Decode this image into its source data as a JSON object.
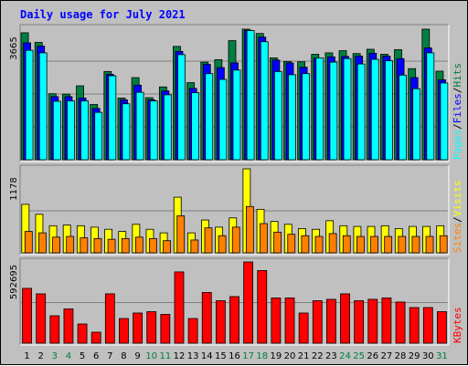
{
  "chart_data": {
    "type": "bar",
    "title": "Daily usage for July 2021",
    "days": [
      "1",
      "2",
      "3",
      "4",
      "5",
      "6",
      "7",
      "8",
      "9",
      "10",
      "11",
      "12",
      "13",
      "14",
      "15",
      "16",
      "17",
      "18",
      "19",
      "20",
      "21",
      "22",
      "23",
      "24",
      "25",
      "26",
      "27",
      "28",
      "29",
      "30",
      "31"
    ],
    "weekend_days": [
      "3",
      "4",
      "10",
      "11",
      "17",
      "18",
      "24",
      "25",
      "31"
    ],
    "colors": {
      "title": "#0000ff",
      "day_label": "#000000",
      "weekend_label": "#008040",
      "hits": "#008040",
      "files": "#0000ff",
      "pages": "#00ffff",
      "visits": "#ffff00",
      "sites": "#ff8000",
      "kbytes": "#ff0000",
      "separator": "#000000"
    },
    "panels": [
      {
        "name": "hits-files-pages",
        "max_label": "3665",
        "ylim": [
          0,
          3665
        ],
        "legend": [
          {
            "label": "Pages",
            "color": "#00ffff"
          },
          {
            "label": "/",
            "color": "#000000"
          },
          {
            "label": "Files",
            "color": "#0000ff"
          },
          {
            "label": "/",
            "color": "#000000"
          },
          {
            "label": "Hits",
            "color": "#008040"
          }
        ],
        "series": [
          {
            "name": "Hits",
            "color": "#008040",
            "values": [
              3540,
              3270,
              1840,
              1830,
              2060,
              1540,
              2460,
              1720,
              2290,
              1730,
              2030,
              3160,
              2150,
              2720,
              2790,
              3320,
              3640,
              3520,
              2840,
              2740,
              2730,
              2940,
              2980,
              3040,
              2960,
              3080,
              2940,
              3070,
              2540,
              3640,
              2470
            ]
          },
          {
            "name": "Files",
            "color": "#0000ff",
            "values": [
              3260,
              3170,
              1760,
              1760,
              1720,
              1430,
              2380,
              1670,
              2080,
              1670,
              1920,
              3020,
              1990,
              2660,
              2570,
              2700,
              3610,
              3420,
              2780,
              2700,
              2580,
              2830,
              2870,
              2880,
              2890,
              2970,
              2890,
              2820,
              2290,
              3120,
              2230
            ]
          },
          {
            "name": "Pages",
            "color": "#00ffff",
            "values": [
              3050,
              2980,
              1630,
              1640,
              1640,
              1320,
              2340,
              1560,
              1880,
              1640,
              1810,
              2930,
              1870,
              2400,
              2240,
              2500,
              3600,
              3290,
              2460,
              2370,
              2400,
              2840,
              2720,
              2820,
              2670,
              2800,
              2760,
              2360,
              1980,
              2980,
              2140
            ]
          }
        ]
      },
      {
        "name": "visits-sites",
        "max_label": "1178",
        "ylim": [
          0,
          1178
        ],
        "legend": [
          {
            "label": "Sites",
            "color": "#ff8000"
          },
          {
            "label": "/",
            "color": "#000000"
          },
          {
            "label": "Visits",
            "color": "#ffff00"
          }
        ],
        "series": [
          {
            "name": "Visits",
            "color": "#ffff00",
            "values": [
              680,
              540,
              380,
              390,
              380,
              360,
              330,
              300,
              400,
              330,
              280,
              780,
              280,
              460,
              360,
              490,
              1178,
              610,
              440,
              400,
              340,
              330,
              450,
              380,
              370,
              370,
              380,
              340,
              370,
              370,
              380
            ]
          },
          {
            "name": "Sites",
            "color": "#ff8000",
            "values": [
              300,
              280,
              220,
              230,
              210,
              200,
              190,
              200,
              220,
              200,
              170,
              520,
              180,
              350,
              240,
              360,
              650,
              410,
              290,
              260,
              240,
              230,
              270,
              240,
              230,
              230,
              230,
              230,
              230,
              230,
              240
            ]
          }
        ]
      },
      {
        "name": "kbytes",
        "max_label": "592695",
        "ylim": [
          0,
          592695
        ],
        "legend": [
          {
            "label": "KBytes",
            "color": "#ff0000"
          }
        ],
        "series": [
          {
            "name": "KBytes",
            "color": "#ff0000",
            "values": [
              400000,
              360000,
              200000,
              250000,
              140000,
              80000,
              360000,
              180000,
              220000,
              230000,
              210000,
              520000,
              180000,
              370000,
              310000,
              340000,
              592695,
              530000,
              330000,
              330000,
              220000,
              310000,
              320000,
              360000,
              310000,
              320000,
              330000,
              300000,
              260000,
              260000,
              230000
            ]
          }
        ]
      }
    ]
  }
}
